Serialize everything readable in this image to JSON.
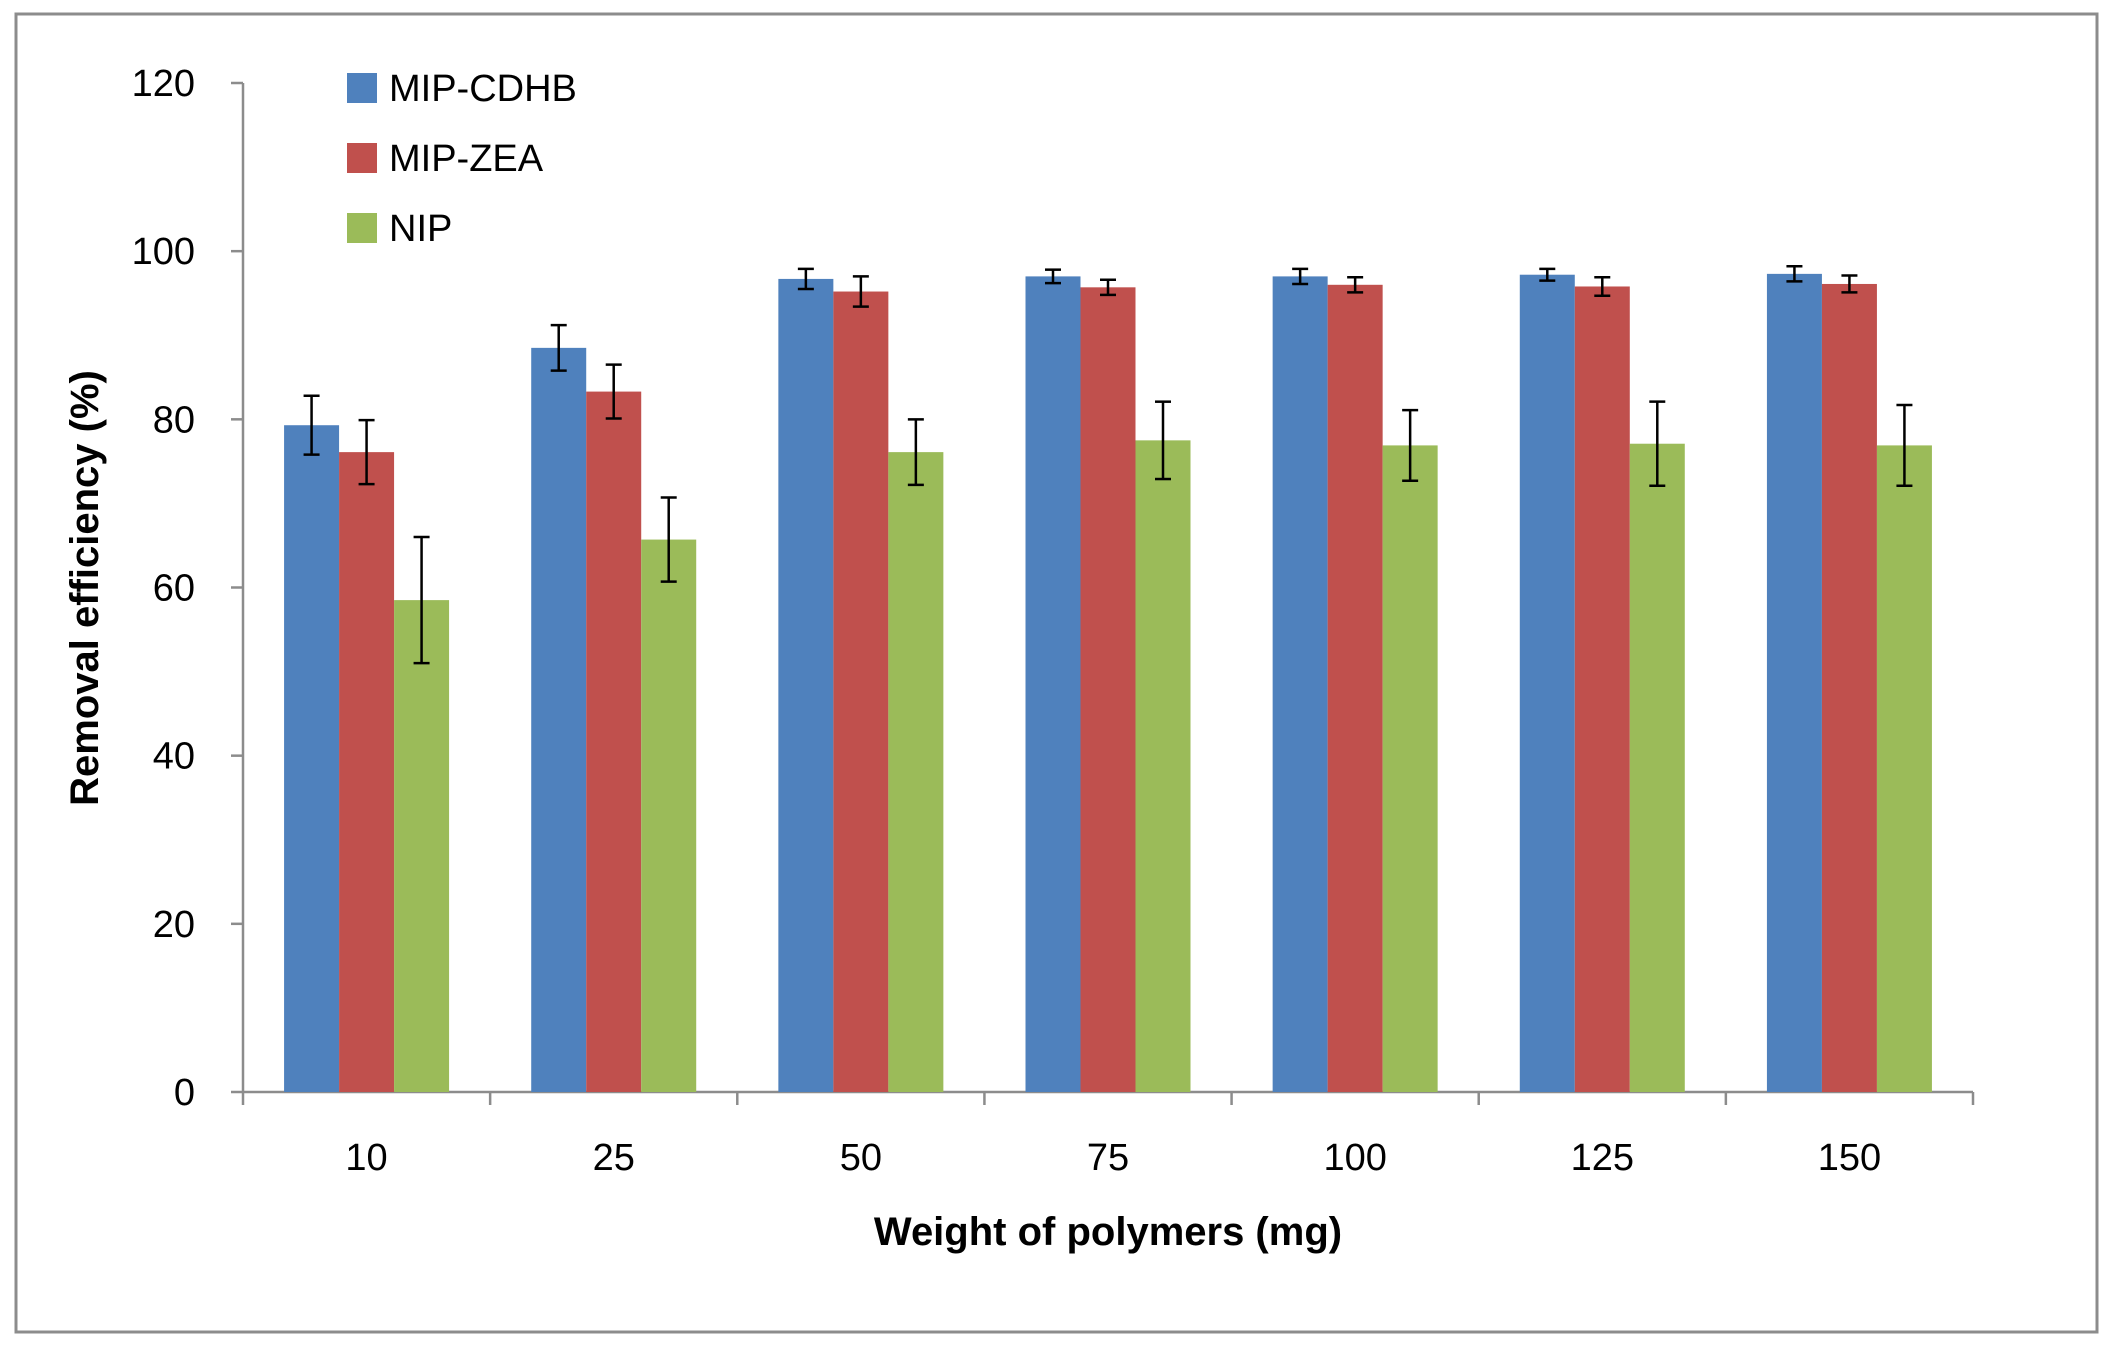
{
  "chart_data": {
    "type": "bar",
    "title": "",
    "xlabel": "Weight of polymers (mg)",
    "ylabel": "Removal efficiency (%)",
    "ylim": [
      0,
      120
    ],
    "yticks": [
      0,
      20,
      40,
      60,
      80,
      100,
      120
    ],
    "categories": [
      "10",
      "25",
      "50",
      "75",
      "100",
      "125",
      "150"
    ],
    "grid": false,
    "legend_position": "top-left",
    "series": [
      {
        "name": "MIP-CDHB",
        "color": "#4F81BD",
        "values": [
          79.3,
          88.5,
          96.7,
          97.0,
          97.0,
          97.2,
          97.3
        ],
        "errors": [
          3.5,
          2.7,
          1.2,
          0.8,
          0.9,
          0.7,
          0.9
        ]
      },
      {
        "name": "MIP-ZEA",
        "color": "#C0504D",
        "values": [
          76.1,
          83.3,
          95.2,
          95.7,
          96.0,
          95.8,
          96.1
        ],
        "errors": [
          3.8,
          3.2,
          1.8,
          0.9,
          0.9,
          1.1,
          1.0
        ]
      },
      {
        "name": "NIP",
        "color": "#9BBB59",
        "values": [
          58.5,
          65.7,
          76.1,
          77.5,
          76.9,
          77.1,
          76.9
        ],
        "errors": [
          7.5,
          5.0,
          3.9,
          4.6,
          4.2,
          5.0,
          4.8
        ]
      }
    ]
  }
}
